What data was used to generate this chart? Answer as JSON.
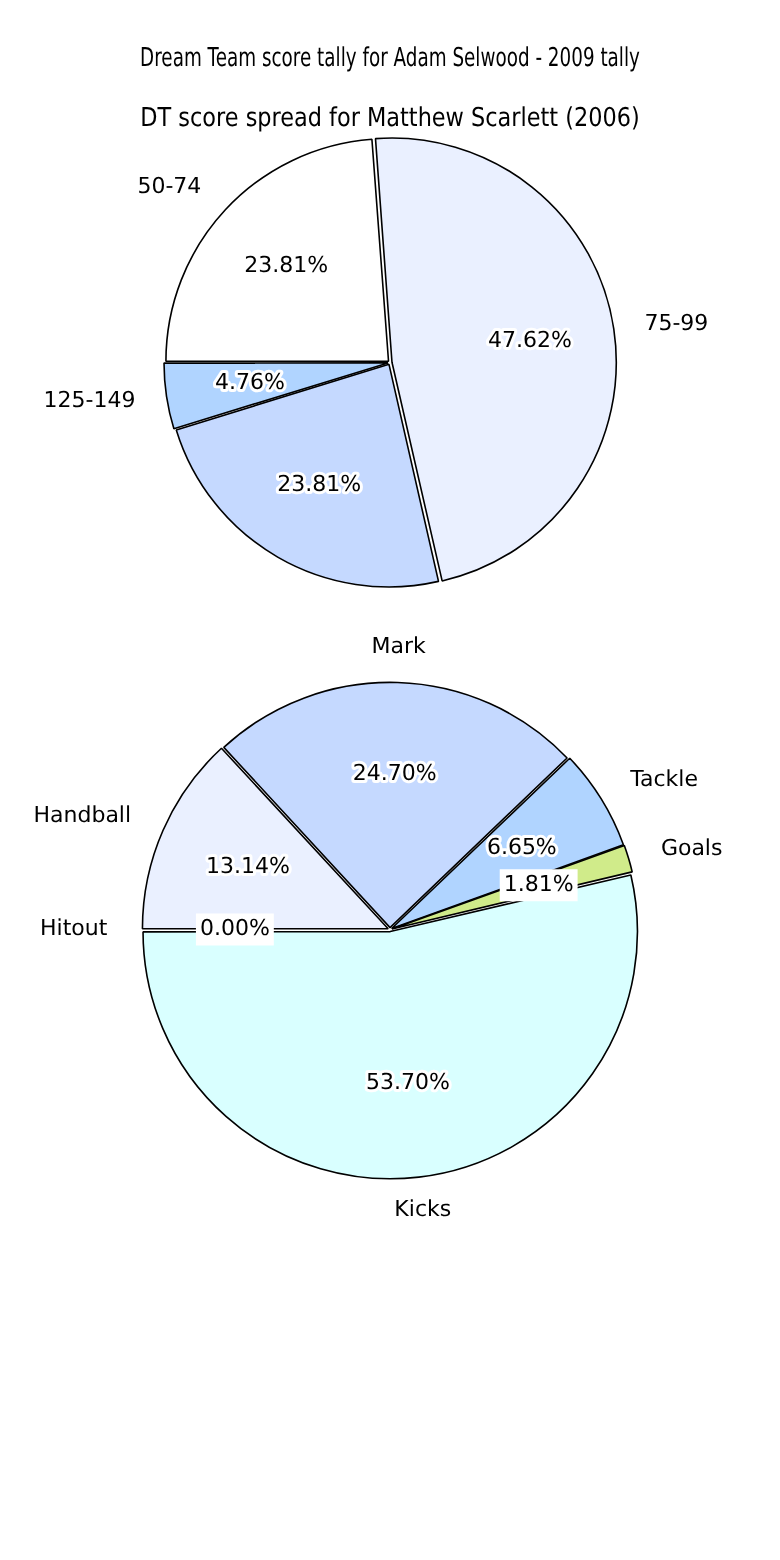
{
  "chart_data": [
    {
      "type": "pie",
      "title": "Dream Team score tally for Adam Selwood - 2009 tally",
      "categories": [
        "50-74",
        "75-99",
        null,
        "125-149"
      ],
      "values": [
        23.81,
        47.62,
        23.81,
        4.76
      ],
      "colors": [
        "#ffffff",
        "#eaf0ff",
        "#c5d9ff",
        "#b0d4ff"
      ],
      "value_labels": [
        "23.81%",
        "47.62%",
        "23.81%",
        "4.76%"
      ],
      "legend": false
    },
    {
      "type": "pie",
      "title": "DT score spread for Matthew Scarlett (2006)",
      "categories": [
        "Handball",
        "Mark",
        "Tackle",
        "Goals",
        "Kicks",
        "Hitout"
      ],
      "values": [
        13.14,
        24.7,
        6.65,
        1.81,
        53.7,
        0.0
      ],
      "colors": [
        "#eaf0ff",
        "#c5d9ff",
        "#b0d4ff",
        "#d0eb8a",
        "#d9ffff",
        "#eaf0ff"
      ],
      "value_labels": [
        "13.14%",
        "24.70%",
        "6.65%",
        "1.81%",
        "53.70%",
        "0.00%"
      ],
      "legend": false
    }
  ]
}
